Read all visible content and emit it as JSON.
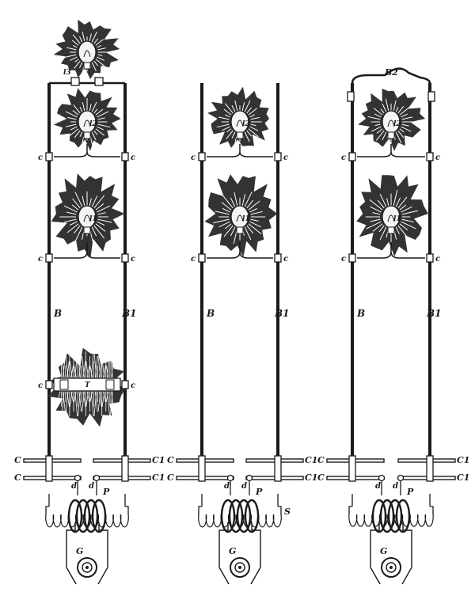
{
  "colors": {
    "ink": "#1a1a1a",
    "paper": "#ffffff",
    "glow": "#333333",
    "ray": "#ffffff"
  },
  "figures": [
    {
      "name": "figure-left",
      "labels": {
        "top_lamp": "l3",
        "lamp_upper": "l2",
        "lamp_lower": "l1",
        "conductor_left": "B",
        "conductor_right": "B1",
        "tube": "T",
        "plate_left": "C",
        "plate_right": "C1",
        "gap": "d",
        "primary": "P",
        "generator": "G",
        "connector": "c"
      },
      "elements": [
        "top-lamp",
        "lamp-upper",
        "lamp-lower",
        "tube"
      ]
    },
    {
      "name": "figure-middle",
      "labels": {
        "lamp_upper": "l2",
        "lamp_lower": "l1",
        "conductor_left": "B",
        "conductor_right": "B1",
        "plate_left": "C",
        "plate_right": "C1",
        "gap": "d",
        "primary": "P",
        "secondary": "S",
        "generator": "G",
        "connector": "c"
      },
      "elements": [
        "lamp-upper",
        "lamp-lower"
      ]
    },
    {
      "name": "figure-right",
      "labels": {
        "bridge": "B2",
        "lamp_upper": "l2",
        "lamp_lower": "l1",
        "conductor_left": "B",
        "conductor_right": "B1",
        "plate_left": "C",
        "plate_right": "C1",
        "gap": "d",
        "primary": "P",
        "generator": "G",
        "connector": "c"
      },
      "elements": [
        "bridge",
        "lamp-upper",
        "lamp-lower"
      ]
    }
  ]
}
